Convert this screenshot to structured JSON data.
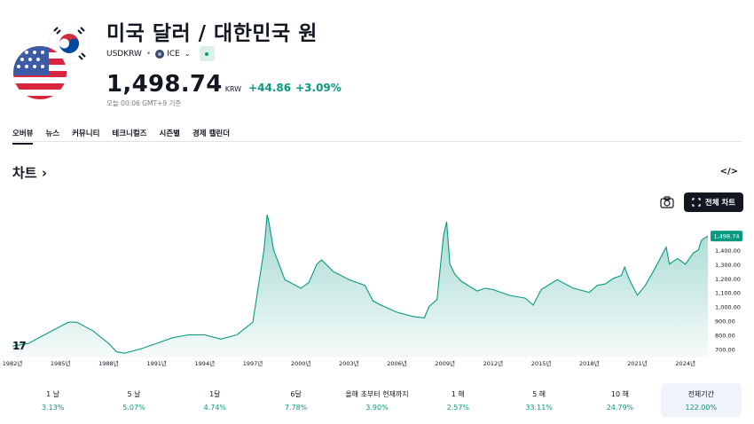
{
  "header": {
    "title": "미국 달러 / 대한민국 원",
    "symbol": "USDKRW",
    "exchange": "ICE",
    "price": "1,498.74",
    "currency": "KRW",
    "change": "+44.86",
    "change_pct": "+3.09%",
    "timestamp": "오늘 00:06 GMT+9 기준"
  },
  "tabs": [
    "오버뷰",
    "뉴스",
    "커뮤니티",
    "테크니컬즈",
    "시즌별",
    "경제 캘린더"
  ],
  "active_tab": 0,
  "section": {
    "title": "차트 ›",
    "embed_icon": "</>"
  },
  "toolbar": {
    "fullchart_label": "전체 차트"
  },
  "colors": {
    "accent_green": "#089981",
    "area_fill": "#c9ebe0",
    "text": "#131722",
    "muted": "#787b86"
  },
  "chart_data": {
    "type": "area",
    "x_tick_labels": [
      "1982년",
      "1985년",
      "1988년",
      "1991년",
      "1994년",
      "1997년",
      "2000년",
      "2003년",
      "2006년",
      "2009년",
      "2012년",
      "2015년",
      "2018년",
      "2021년",
      "2024년"
    ],
    "y_tick_labels": [
      "1,400.00",
      "1,300.00",
      "1,200.00",
      "1,100.00",
      "1,000.00",
      "900.00",
      "800.00",
      "700.00"
    ],
    "ylim": [
      640,
      1600
    ],
    "xlim": [
      1982,
      2025.4
    ],
    "last_value_label": "1,498.74",
    "x": [
      1982.0,
      1983.0,
      1984.0,
      1985.0,
      1985.5,
      1986.0,
      1987.0,
      1988.0,
      1988.5,
      1989.0,
      1990.0,
      1991.0,
      1992.0,
      1993.0,
      1994.0,
      1995.0,
      1996.0,
      1997.0,
      1997.7,
      1997.9,
      1998.0,
      1998.3,
      1998.6,
      1999.0,
      2000.0,
      2000.5,
      2001.0,
      2001.3,
      2002.0,
      2003.0,
      2004.0,
      2004.5,
      2005.0,
      2006.0,
      2007.0,
      2007.7,
      2008.0,
      2008.5,
      2008.9,
      2009.1,
      2009.3,
      2009.6,
      2010.0,
      2011.0,
      2011.5,
      2012.0,
      2013.0,
      2014.0,
      2014.5,
      2015.0,
      2016.0,
      2016.5,
      2017.0,
      2018.0,
      2018.5,
      2019.0,
      2019.5,
      2020.0,
      2020.2,
      2020.5,
      2021.0,
      2021.5,
      2022.0,
      2022.8,
      2023.0,
      2023.5,
      2024.0,
      2024.5,
      2024.8,
      2025.0,
      2025.4
    ],
    "values": [
      720,
      740,
      800,
      860,
      890,
      890,
      830,
      740,
      680,
      670,
      700,
      740,
      780,
      800,
      800,
      770,
      800,
      890,
      1400,
      1650,
      1600,
      1400,
      1310,
      1190,
      1130,
      1170,
      1300,
      1330,
      1250,
      1190,
      1150,
      1040,
      1010,
      960,
      930,
      920,
      1000,
      1050,
      1500,
      1600,
      1300,
      1230,
      1180,
      1110,
      1130,
      1120,
      1080,
      1060,
      1010,
      1120,
      1190,
      1160,
      1130,
      1100,
      1150,
      1160,
      1200,
      1220,
      1280,
      1190,
      1080,
      1150,
      1250,
      1420,
      1300,
      1340,
      1300,
      1380,
      1400,
      1470,
      1498.74
    ]
  },
  "periods": [
    {
      "label": "1 날",
      "pct": "3.13%"
    },
    {
      "label": "5 날",
      "pct": "5.07%"
    },
    {
      "label": "1달",
      "pct": "4.74%"
    },
    {
      "label": "6달",
      "pct": "7.78%"
    },
    {
      "label": "올해 초부터 현재까지",
      "pct": "3.90%"
    },
    {
      "label": "1 해",
      "pct": "2.57%"
    },
    {
      "label": "5 해",
      "pct": "33.11%"
    },
    {
      "label": "10 해",
      "pct": "24.79%"
    },
    {
      "label": "전체기간",
      "pct": "122.00%"
    }
  ],
  "active_period": 8
}
